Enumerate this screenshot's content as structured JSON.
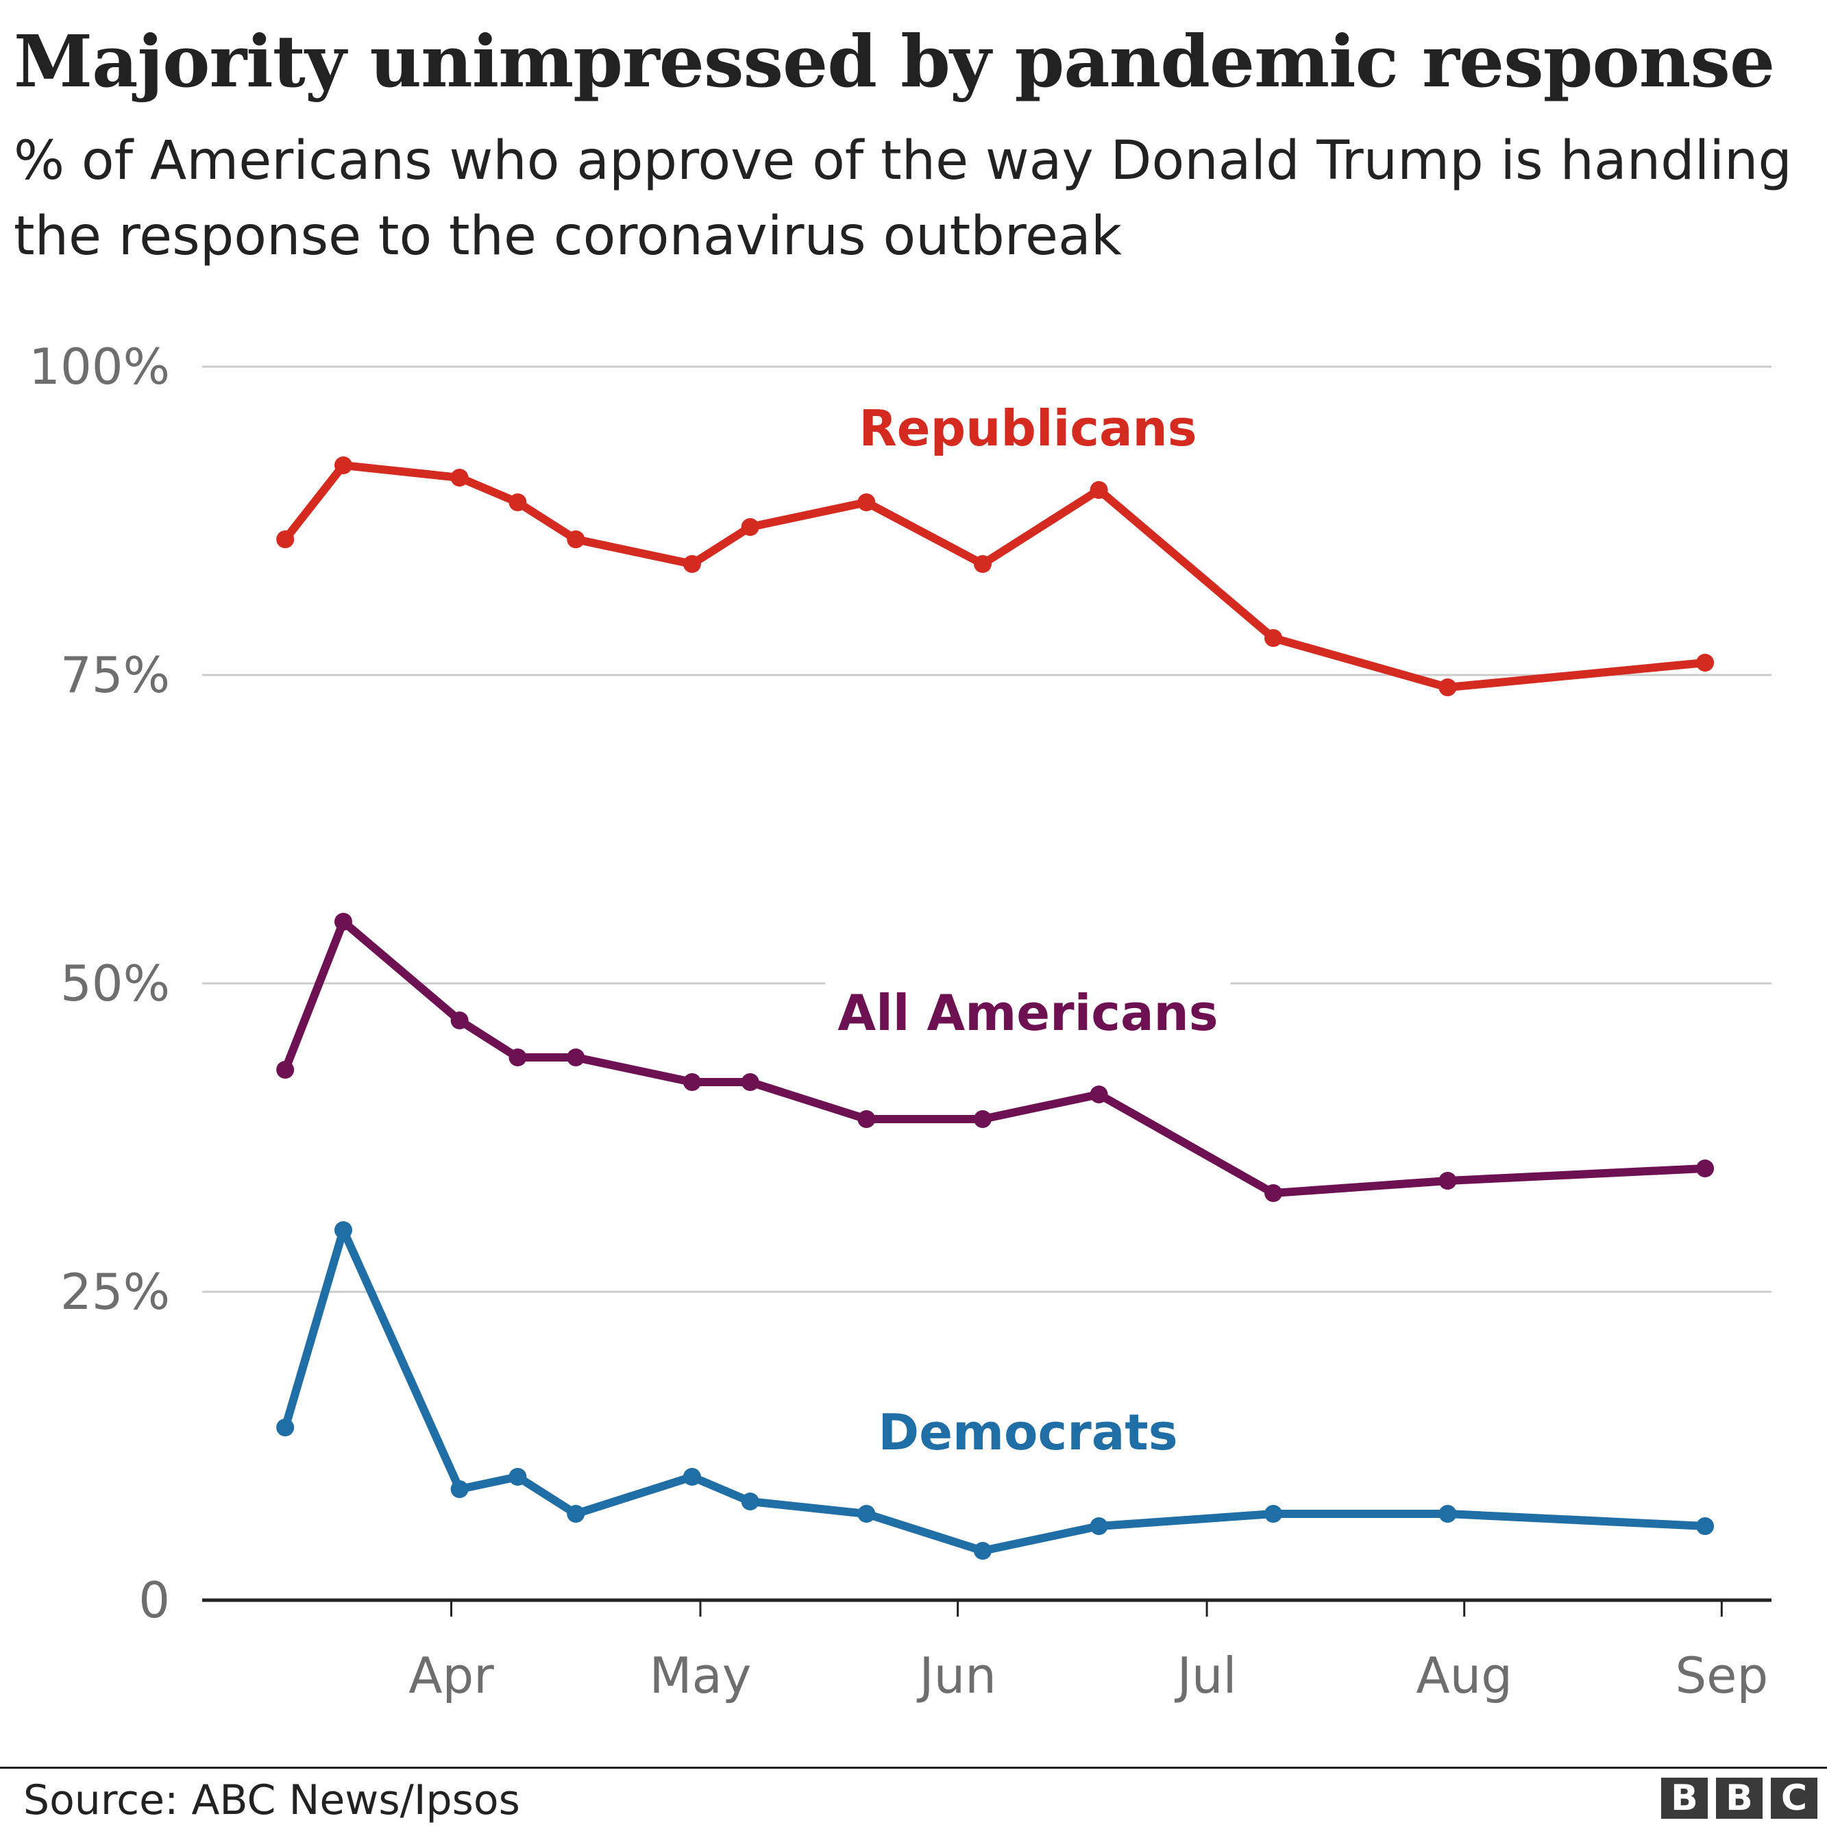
{
  "header": {
    "title": "Majority unimpressed by pandemic response",
    "subtitle": "% of Americans who approve of the way Donald Trump is handling the response to the coronavirus outbreak"
  },
  "footer": {
    "source": "Source: ABC News/Ipsos",
    "logo_letters": [
      "B",
      "B",
      "C"
    ]
  },
  "colors": {
    "republicans": "#d42a20",
    "all_americans": "#6e1152",
    "democrats": "#1f6ea5",
    "grid": "#cccccc",
    "axis": "#222222",
    "tick_text": "#6e6e6e"
  },
  "chart_data": {
    "type": "line",
    "title": "Majority unimpressed by pandemic response",
    "subtitle": "% of Americans who approve of the way Donald Trump is handling the response to the coronavirus outbreak",
    "xlabel": "",
    "ylabel": "",
    "ylim": [
      0,
      100
    ],
    "y_ticks": [
      {
        "value": 0,
        "label": "0"
      },
      {
        "value": 25,
        "label": "25%"
      },
      {
        "value": 50,
        "label": "50%"
      },
      {
        "value": 75,
        "label": "75%"
      },
      {
        "value": 100,
        "label": "100%"
      }
    ],
    "x_ticks": [
      {
        "date": "2020-04-01",
        "label": "Apr"
      },
      {
        "date": "2020-05-01",
        "label": "May"
      },
      {
        "date": "2020-06-01",
        "label": "Jun"
      },
      {
        "date": "2020-07-01",
        "label": "Jul"
      },
      {
        "date": "2020-08-01",
        "label": "Aug"
      },
      {
        "date": "2020-09-01",
        "label": "Sep"
      }
    ],
    "xlim": [
      "2020-03-02",
      "2020-09-07"
    ],
    "x": [
      "2020-03-12",
      "2020-03-19",
      "2020-04-02",
      "2020-04-09",
      "2020-04-16",
      "2020-04-30",
      "2020-05-07",
      "2020-05-21",
      "2020-06-04",
      "2020-06-18",
      "2020-07-09",
      "2020-07-30",
      "2020-08-30"
    ],
    "series": [
      {
        "name": "Republicans",
        "label": "Republicans",
        "color": "#d42a20",
        "values": [
          86,
          92,
          91,
          89,
          86,
          84,
          87,
          89,
          84,
          90,
          78,
          74,
          76
        ]
      },
      {
        "name": "All Americans",
        "label": "All Americans",
        "color": "#6e1152",
        "values": [
          43,
          55,
          47,
          44,
          44,
          42,
          42,
          39,
          39,
          41,
          33,
          34,
          35
        ]
      },
      {
        "name": "Democrats",
        "label": "Democrats",
        "color": "#1f6ea5",
        "values": [
          14,
          30,
          9,
          10,
          7,
          10,
          8,
          7,
          4,
          6,
          7,
          7,
          6
        ]
      }
    ]
  }
}
